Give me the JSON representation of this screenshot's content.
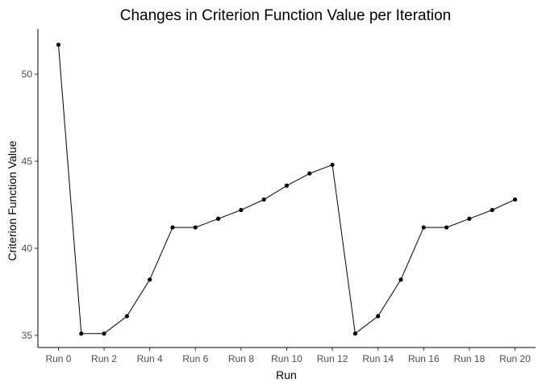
{
  "chart_data": {
    "type": "line",
    "title": "Changes in Criterion Function Value per Iteration",
    "xlabel": "Run",
    "ylabel": "Criterion Function Value",
    "x": [
      0,
      1,
      2,
      3,
      4,
      5,
      6,
      7,
      8,
      9,
      10,
      11,
      12,
      13,
      14,
      15,
      16,
      17,
      18,
      19,
      20
    ],
    "values": [
      51.7,
      35.1,
      35.1,
      36.1,
      38.2,
      41.2,
      41.2,
      41.7,
      42.2,
      42.8,
      43.6,
      44.3,
      44.8,
      35.1,
      36.1,
      38.2,
      41.2,
      41.2,
      41.7,
      42.2,
      42.8
    ],
    "x_ticks": [
      0,
      2,
      4,
      6,
      8,
      10,
      12,
      14,
      16,
      18,
      20
    ],
    "x_tick_labels": [
      "Run 0",
      "Run 2",
      "Run 4",
      "Run 6",
      "Run 8",
      "Run 10",
      "Run 12",
      "Run 14",
      "Run 16",
      "Run 18",
      "Run 20"
    ],
    "y_ticks": [
      35,
      40,
      45,
      50
    ],
    "y_tick_labels": [
      "35",
      "40",
      "45",
      "50"
    ],
    "xlim": [
      -0.9,
      20.9
    ],
    "ylim": [
      34.3,
      52.6
    ],
    "grid": false,
    "legend": "none",
    "colors": {
      "line": "#000000",
      "points": "#000000"
    }
  }
}
